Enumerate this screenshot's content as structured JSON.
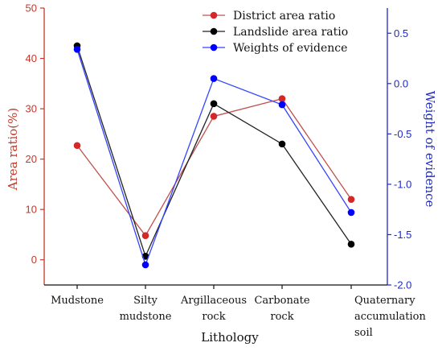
{
  "chart_data": {
    "type": "line",
    "categories": [
      [
        "Mudstone"
      ],
      [
        "Silty",
        "mudstone"
      ],
      [
        "Argillaceous",
        "rock"
      ],
      [
        "Carbonate",
        "rock"
      ],
      [
        "Quaternary",
        "accumulation",
        "soil"
      ]
    ],
    "xlabel": "Lithology",
    "ylabel_left": "Area ratio(%)",
    "ylabel_right": "Weight of evidence",
    "ylim_left": [
      -5,
      50
    ],
    "ylim_right": [
      -2.0,
      0.75
    ],
    "yticks_left": [
      "0",
      "10",
      "20",
      "30",
      "40",
      "50"
    ],
    "yticks_right": [
      "0.5",
      "0.0",
      "-0.5",
      "-1.0",
      "-1.5",
      "-2.0"
    ],
    "series": [
      {
        "name": "District area ratio",
        "axis": "left",
        "color": "#d62728",
        "line_color": "#c0504d",
        "values": [
          22.7,
          4.8,
          28.5,
          32.0,
          12.0
        ]
      },
      {
        "name": "Landslide area ratio",
        "axis": "left",
        "color": "#000000",
        "line_color": "#222222",
        "values": [
          42.5,
          0.7,
          31.0,
          23.0,
          3.1
        ]
      },
      {
        "name": "Weights of evidence",
        "axis": "right",
        "color": "#0000ff",
        "line_color": "#3344ff",
        "values": [
          0.34,
          -1.8,
          0.05,
          -0.21,
          -1.28
        ]
      }
    ],
    "legend_position": "top-right",
    "grid": false
  }
}
